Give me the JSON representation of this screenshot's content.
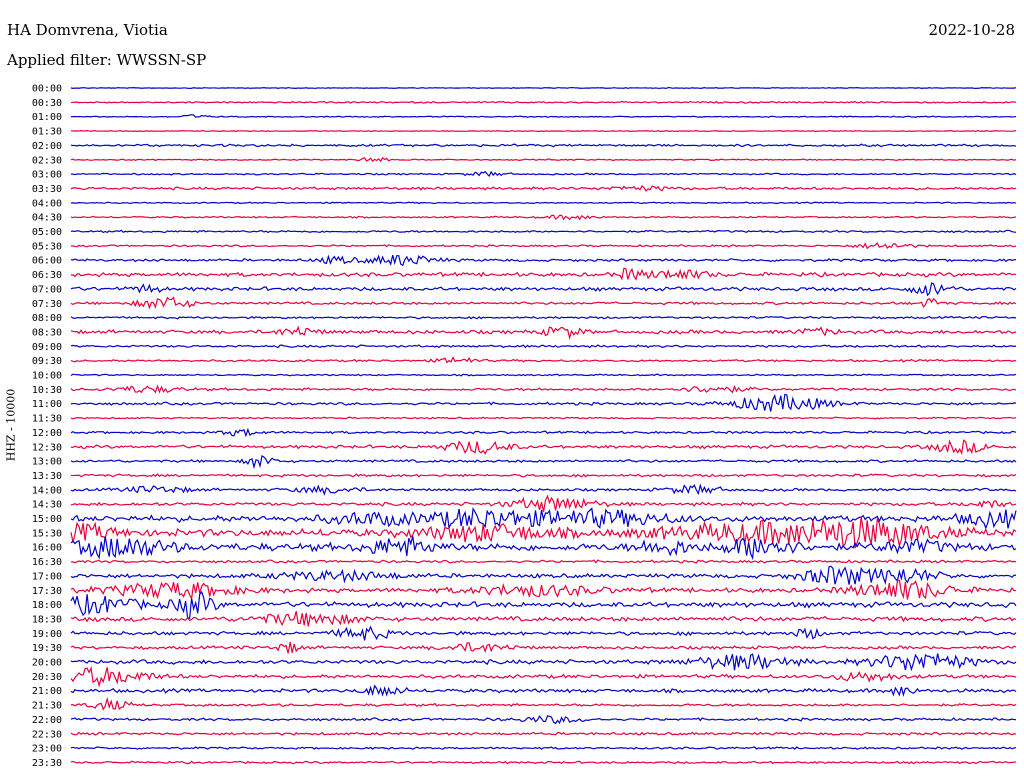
{
  "header": {
    "station": "HA Domvrena, Viotia",
    "date": "2022-10-28",
    "filter_label": "Applied filter:",
    "filter_value": "WWSSN-SP"
  },
  "channel_label": "HHZ - 10000",
  "chart_data": {
    "type": "line",
    "title": "HA Domvrena, Viotia",
    "subtitle": "Applied filter: WWSSN-SP",
    "ylabel": "HHZ - 10000",
    "xlabel": "",
    "tick_labels": [
      "00:00",
      "00:30",
      "01:00",
      "01:30",
      "02:00",
      "02:30",
      "03:00",
      "03:30",
      "04:00",
      "04:30",
      "05:00",
      "05:30",
      "06:00",
      "06:30",
      "07:00",
      "07:30",
      "08:00",
      "08:30",
      "09:00",
      "09:30",
      "10:00",
      "10:30",
      "11:00",
      "11:30",
      "12:00",
      "12:30",
      "13:00",
      "13:30",
      "14:00",
      "14:30",
      "15:00",
      "15:30",
      "16:00",
      "16:30",
      "17:00",
      "17:30",
      "18:00",
      "18:30",
      "19:00",
      "19:30",
      "20:00",
      "20:30",
      "21:00",
      "21:30",
      "22:00",
      "22:30",
      "23:00",
      "23:30"
    ],
    "series_colors": [
      "#0000cc",
      "#e8003a"
    ],
    "noise_levels": [
      0.3,
      0.6,
      0.4,
      0.3,
      0.9,
      0.5,
      0.6,
      1.0,
      0.5,
      0.6,
      0.8,
      0.7,
      1.0,
      1.5,
      1.4,
      1.0,
      0.8,
      1.4,
      0.9,
      0.8,
      0.6,
      1.0,
      1.0,
      0.6,
      0.9,
      1.2,
      1.0,
      1.0,
      1.0,
      1.3,
      2.5,
      3.0,
      3.0,
      1.0,
      1.6,
      1.8,
      2.0,
      1.8,
      1.4,
      1.2,
      1.6,
      1.4,
      1.4,
      1.0,
      1.0,
      1.0,
      0.8,
      0.8
    ],
    "events": [
      {
        "row": 2,
        "t": 0.13,
        "amp": 2,
        "dur": 0.005
      },
      {
        "row": 5,
        "t": 0.32,
        "amp": 3,
        "dur": 0.005
      },
      {
        "row": 6,
        "t": 0.44,
        "amp": 2,
        "dur": 0.01
      },
      {
        "row": 7,
        "t": 0.6,
        "amp": 2,
        "dur": 0.02
      },
      {
        "row": 9,
        "t": 0.53,
        "amp": 2,
        "dur": 0.015
      },
      {
        "row": 11,
        "t": 0.86,
        "amp": 3,
        "dur": 0.015
      },
      {
        "row": 12,
        "t": 0.28,
        "amp": 3,
        "dur": 0.01
      },
      {
        "row": 12,
        "t": 0.35,
        "amp": 5,
        "dur": 0.02
      },
      {
        "row": 13,
        "t": 0.59,
        "amp": 5,
        "dur": 0.005
      },
      {
        "row": 13,
        "t": 0.64,
        "amp": 4,
        "dur": 0.02
      },
      {
        "row": 14,
        "t": 0.08,
        "amp": 4,
        "dur": 0.005
      },
      {
        "row": 14,
        "t": 0.91,
        "amp": 6,
        "dur": 0.01
      },
      {
        "row": 15,
        "t": 0.1,
        "amp": 6,
        "dur": 0.015
      },
      {
        "row": 15,
        "t": 0.91,
        "amp": 5,
        "dur": 0.003
      },
      {
        "row": 17,
        "t": 0.24,
        "amp": 4,
        "dur": 0.01
      },
      {
        "row": 17,
        "t": 0.52,
        "amp": 5,
        "dur": 0.01
      },
      {
        "row": 17,
        "t": 0.79,
        "amp": 3,
        "dur": 0.01
      },
      {
        "row": 19,
        "t": 0.41,
        "amp": 3,
        "dur": 0.01
      },
      {
        "row": 21,
        "t": 0.08,
        "amp": 3,
        "dur": 0.02
      },
      {
        "row": 21,
        "t": 0.68,
        "amp": 3,
        "dur": 0.02
      },
      {
        "row": 22,
        "t": 0.75,
        "amp": 8,
        "dur": 0.03
      },
      {
        "row": 24,
        "t": 0.18,
        "amp": 3,
        "dur": 0.01
      },
      {
        "row": 25,
        "t": 0.43,
        "amp": 6,
        "dur": 0.02
      },
      {
        "row": 25,
        "t": 0.94,
        "amp": 6,
        "dur": 0.015
      },
      {
        "row": 26,
        "t": 0.2,
        "amp": 7,
        "dur": 0.005
      },
      {
        "row": 28,
        "t": 0.09,
        "amp": 3,
        "dur": 0.02
      },
      {
        "row": 28,
        "t": 0.27,
        "amp": 3,
        "dur": 0.02
      },
      {
        "row": 28,
        "t": 0.66,
        "amp": 4,
        "dur": 0.015
      },
      {
        "row": 29,
        "t": 0.51,
        "amp": 7,
        "dur": 0.025
      },
      {
        "row": 29,
        "t": 0.97,
        "amp": 3,
        "dur": 0.01
      },
      {
        "row": 30,
        "t": 0.32,
        "amp": 5,
        "dur": 0.03
      },
      {
        "row": 30,
        "t": 0.43,
        "amp": 8,
        "dur": 0.03
      },
      {
        "row": 30,
        "t": 0.55,
        "amp": 7,
        "dur": 0.05
      },
      {
        "row": 30,
        "t": 0.98,
        "amp": 7,
        "dur": 0.02
      },
      {
        "row": 31,
        "t": 0.0,
        "amp": 7,
        "dur": 0.03
      },
      {
        "row": 31,
        "t": 0.44,
        "amp": 7,
        "dur": 0.04
      },
      {
        "row": 31,
        "t": 0.75,
        "amp": 9,
        "dur": 0.08
      },
      {
        "row": 31,
        "t": 0.85,
        "amp": 8,
        "dur": 0.04
      },
      {
        "row": 32,
        "t": 0.05,
        "amp": 9,
        "dur": 0.03
      },
      {
        "row": 32,
        "t": 0.35,
        "amp": 8,
        "dur": 0.02
      },
      {
        "row": 32,
        "t": 0.63,
        "amp": 6,
        "dur": 0.015
      },
      {
        "row": 32,
        "t": 0.73,
        "amp": 10,
        "dur": 0.02
      },
      {
        "row": 32,
        "t": 0.89,
        "amp": 5,
        "dur": 0.02
      },
      {
        "row": 34,
        "t": 0.28,
        "amp": 4,
        "dur": 0.04
      },
      {
        "row": 34,
        "t": 0.81,
        "amp": 9,
        "dur": 0.02
      },
      {
        "row": 34,
        "t": 0.88,
        "amp": 7,
        "dur": 0.02
      },
      {
        "row": 35,
        "t": 0.11,
        "amp": 7,
        "dur": 0.04
      },
      {
        "row": 35,
        "t": 0.49,
        "amp": 5,
        "dur": 0.04
      },
      {
        "row": 35,
        "t": 0.88,
        "amp": 9,
        "dur": 0.03
      },
      {
        "row": 36,
        "t": 0.02,
        "amp": 8,
        "dur": 0.03
      },
      {
        "row": 36,
        "t": 0.13,
        "amp": 12,
        "dur": 0.01
      },
      {
        "row": 37,
        "t": 0.25,
        "amp": 6,
        "dur": 0.03
      },
      {
        "row": 38,
        "t": 0.31,
        "amp": 6,
        "dur": 0.015
      },
      {
        "row": 38,
        "t": 0.78,
        "amp": 5,
        "dur": 0.005
      },
      {
        "row": 39,
        "t": 0.23,
        "amp": 5,
        "dur": 0.005
      },
      {
        "row": 39,
        "t": 0.43,
        "amp": 4,
        "dur": 0.02
      },
      {
        "row": 40,
        "t": 0.71,
        "amp": 7,
        "dur": 0.03
      },
      {
        "row": 40,
        "t": 0.9,
        "amp": 9,
        "dur": 0.03
      },
      {
        "row": 41,
        "t": 0.03,
        "amp": 8,
        "dur": 0.03
      },
      {
        "row": 41,
        "t": 0.84,
        "amp": 4,
        "dur": 0.02
      },
      {
        "row": 42,
        "t": 0.33,
        "amp": 5,
        "dur": 0.01
      },
      {
        "row": 42,
        "t": 0.88,
        "amp": 5,
        "dur": 0.005
      },
      {
        "row": 43,
        "t": 0.04,
        "amp": 5,
        "dur": 0.01
      },
      {
        "row": 44,
        "t": 0.51,
        "amp": 3,
        "dur": 0.02
      }
    ]
  }
}
